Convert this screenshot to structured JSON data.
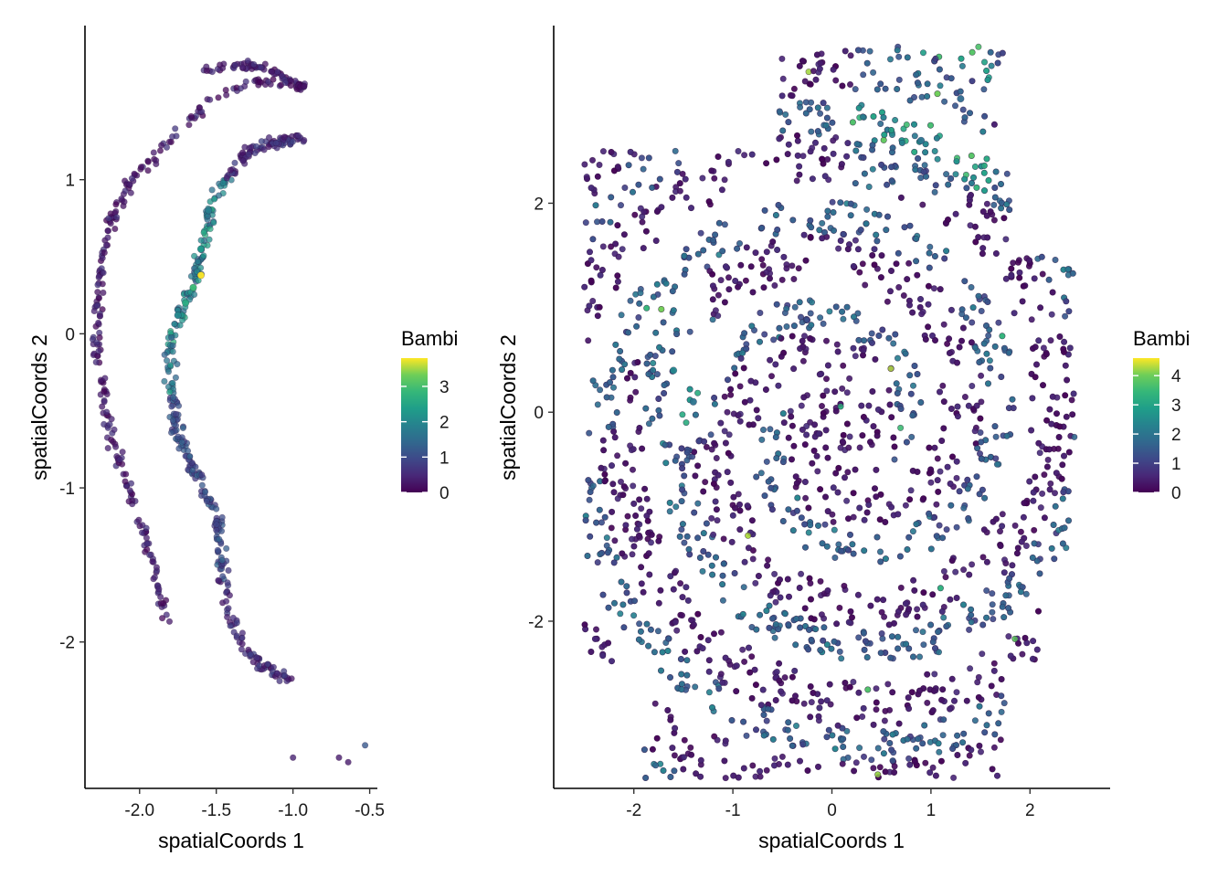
{
  "chart_data": [
    {
      "type": "scatter",
      "xlabel": "spatialCoords 1",
      "ylabel": "spatialCoords 2",
      "xlim": [
        -2.35,
        -0.45
      ],
      "ylim": [
        -2.95,
        2.0
      ],
      "xticks": [
        -2.0,
        -1.5,
        -1.0,
        -0.5
      ],
      "xtick_labels": [
        "-2.0",
        "-1.5",
        "-1.0",
        "-0.5"
      ],
      "yticks": [
        -2,
        -1,
        0,
        1
      ],
      "ytick_labels": [
        "-2",
        "-1",
        "0",
        "1"
      ],
      "color_variable": "Bambi",
      "colorscale": "viridis",
      "color_range": [
        0,
        3.8
      ],
      "legend": {
        "title": "Bambi",
        "ticks": [
          0,
          1,
          2,
          3
        ],
        "tick_labels": [
          "0",
          "1",
          "2",
          "3"
        ],
        "placement": "right"
      },
      "grid": false,
      "outer_arc": [
        [
          -1.58,
          1.71
        ],
        [
          -1.45,
          1.73
        ],
        [
          -1.3,
          1.74
        ],
        [
          -1.2,
          1.73
        ],
        [
          -1.08,
          1.67
        ],
        [
          -0.97,
          1.62
        ],
        [
          -0.92,
          1.6
        ],
        [
          -1.2,
          1.64
        ],
        [
          -1.4,
          1.58
        ],
        [
          -1.57,
          1.48
        ],
        [
          -1.7,
          1.35
        ],
        [
          -1.9,
          1.15
        ],
        [
          -2.05,
          1.0
        ],
        [
          -2.15,
          0.82
        ],
        [
          -2.22,
          0.6
        ],
        [
          -2.26,
          0.35
        ],
        [
          -2.28,
          0.1
        ],
        [
          -2.27,
          -0.15
        ],
        [
          -2.24,
          -0.4
        ],
        [
          -2.2,
          -0.62
        ],
        [
          -2.13,
          -0.85
        ],
        [
          -2.05,
          -1.05
        ],
        [
          -1.98,
          -1.25
        ],
        [
          -1.92,
          -1.45
        ],
        [
          -1.88,
          -1.65
        ],
        [
          -1.82,
          -1.9
        ]
      ],
      "inner_arc": [
        [
          -0.95,
          1.27
        ],
        [
          -1.05,
          1.25
        ],
        [
          -1.2,
          1.22
        ],
        [
          -1.32,
          1.15
        ],
        [
          -1.42,
          1.03
        ],
        [
          -1.5,
          0.92
        ],
        [
          -1.55,
          0.75
        ],
        [
          -1.58,
          0.58
        ],
        [
          -1.63,
          0.4
        ],
        [
          -1.7,
          0.22
        ],
        [
          -1.77,
          0.05
        ],
        [
          -1.8,
          -0.15
        ],
        [
          -1.8,
          -0.35
        ],
        [
          -1.77,
          -0.55
        ],
        [
          -1.72,
          -0.72
        ],
        [
          -1.65,
          -0.88
        ],
        [
          -1.56,
          -1.05
        ],
        [
          -1.5,
          -1.22
        ],
        [
          -1.47,
          -1.42
        ],
        [
          -1.45,
          -1.6
        ],
        [
          -1.42,
          -1.8
        ],
        [
          -1.35,
          -1.98
        ],
        [
          -1.25,
          -2.12
        ],
        [
          -1.12,
          -2.2
        ],
        [
          -1.0,
          -2.25
        ]
      ],
      "high_expression_points": [
        {
          "x": -1.6,
          "y": 0.38,
          "value": 3.8
        },
        {
          "x": -1.65,
          "y": 0.3,
          "value": 2.9
        },
        {
          "x": -1.7,
          "y": 0.2,
          "value": 2.6
        },
        {
          "x": -1.6,
          "y": 0.55,
          "value": 2.3
        },
        {
          "x": -1.75,
          "y": 0.12,
          "value": 2.0
        },
        {
          "x": -1.55,
          "y": 0.8,
          "value": 1.8
        }
      ],
      "isolated_points": [
        {
          "x": -1.0,
          "y": -2.75,
          "value": 0.4
        },
        {
          "x": -0.7,
          "y": -2.75,
          "value": 0.3
        },
        {
          "x": -0.64,
          "y": -2.78,
          "value": 0.3
        },
        {
          "x": -0.53,
          "y": -2.67,
          "value": 1.2
        }
      ]
    },
    {
      "type": "scatter",
      "xlabel": "spatialCoords 1",
      "ylabel": "spatialCoords 2",
      "xlim": [
        -2.8,
        2.8
      ],
      "ylim": [
        -3.6,
        3.7
      ],
      "xticks": [
        -2,
        -1,
        0,
        1,
        2
      ],
      "xtick_labels": [
        "-2",
        "-1",
        "0",
        "1",
        "2"
      ],
      "yticks": [
        -2,
        0,
        2
      ],
      "ytick_labels": [
        "-2",
        "0",
        "2"
      ],
      "color_variable": "Bambi",
      "colorscale": "viridis",
      "color_range": [
        0,
        4.6
      ],
      "legend": {
        "title": "Bambi",
        "ticks": [
          0,
          1,
          2,
          3,
          4
        ],
        "tick_labels": [
          "0",
          "1",
          "2",
          "3",
          "4"
        ],
        "placement": "right"
      },
      "grid": false,
      "tissue_extent": {
        "x": [
          -2.55,
          2.45
        ],
        "y": [
          -3.5,
          3.5
        ]
      },
      "notes_high_regions": [
        {
          "x": 0.9,
          "y": 2.6,
          "value": 2.0
        },
        {
          "x": 1.3,
          "y": 3.0,
          "value": 1.8
        },
        {
          "x": -1.6,
          "y": 0.4,
          "value": 2.4
        },
        {
          "x": -1.4,
          "y": 0.1,
          "value": 2.0
        }
      ]
    }
  ]
}
